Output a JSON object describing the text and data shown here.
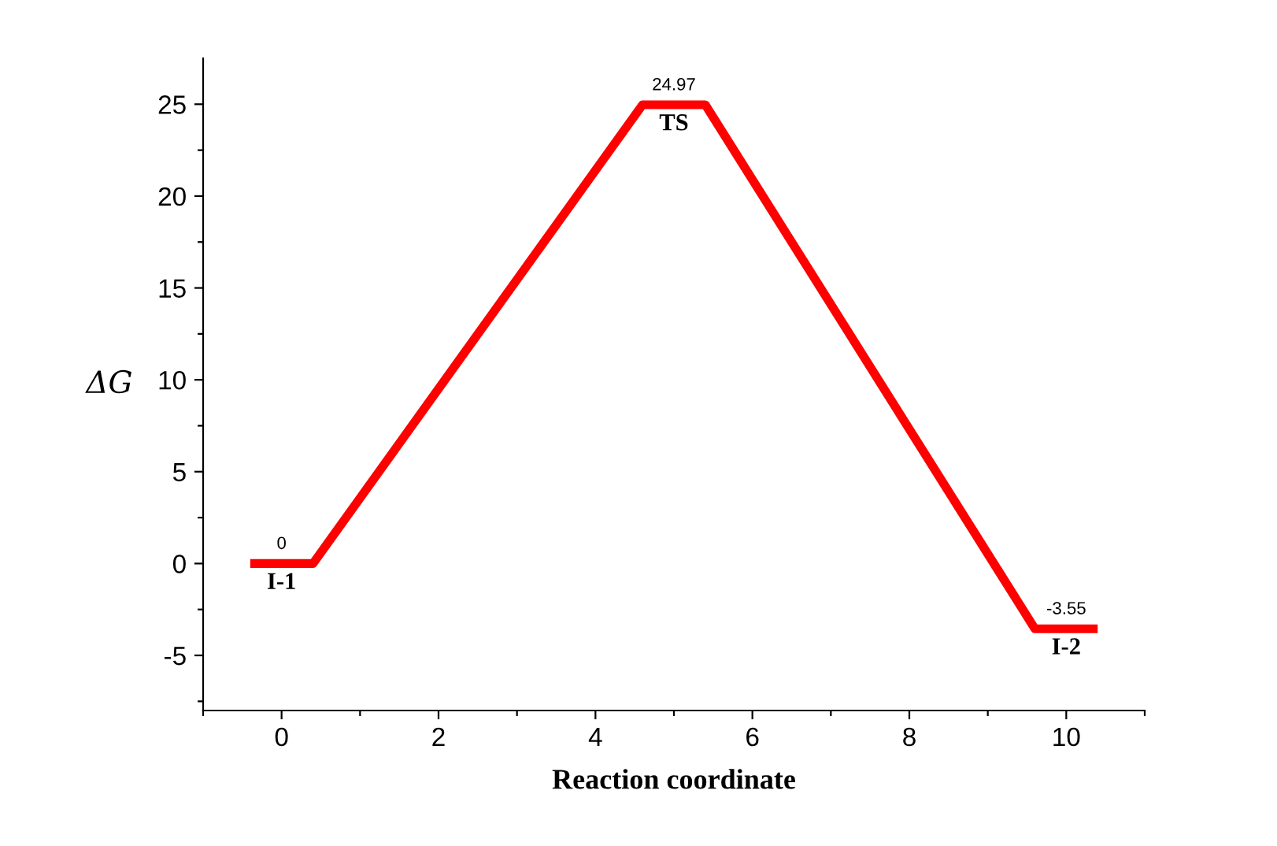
{
  "chart_data": {
    "type": "line",
    "xlabel": "Reaction coordinate",
    "ylabel": "ΔG",
    "x": [
      -0.4,
      0.4,
      4.6,
      5.4,
      9.6,
      10.4
    ],
    "series": [
      {
        "color": "#ff0000",
        "values": [
          0,
          0,
          24.97,
          24.97,
          -3.55,
          -3.55
        ]
      }
    ],
    "xlim": [
      -1,
      11
    ],
    "ylim": [
      -8,
      27.5
    ],
    "xticks": [
      {
        "value": -1,
        "label": null
      },
      0,
      {
        "value": 1,
        "label": null
      },
      2,
      {
        "value": 3,
        "label": null
      },
      4,
      {
        "value": 5,
        "label": null
      },
      6,
      {
        "value": 7,
        "label": null
      },
      8,
      {
        "value": 9,
        "label": null
      },
      10,
      {
        "value": 11,
        "label": null
      }
    ],
    "yticks": [
      {
        "value": -7.5,
        "label": null
      },
      -5,
      {
        "value": -2.5,
        "label": null
      },
      0,
      {
        "value": 2.5,
        "label": null
      },
      5,
      {
        "value": 7.5,
        "label": null
      },
      10,
      {
        "value": 12.5,
        "label": null
      },
      15,
      {
        "value": 17.5,
        "label": null
      },
      20,
      {
        "value": 22.5,
        "label": null
      },
      25
    ],
    "grid": false,
    "legend": false,
    "marker": "none",
    "line_style": "solid",
    "annotations": [
      {
        "text": "0",
        "x": 0,
        "y": 0
      },
      {
        "text": "I-1",
        "x": 0,
        "y": 0
      },
      {
        "text": "24.97",
        "x": 5,
        "y": 24.97
      },
      {
        "text": "TS",
        "x": 5,
        "y": 24.97
      },
      {
        "text": "-3.55",
        "x": 10,
        "y": -3.55
      },
      {
        "text": "I-2",
        "x": 10,
        "y": -3.55
      }
    ]
  }
}
